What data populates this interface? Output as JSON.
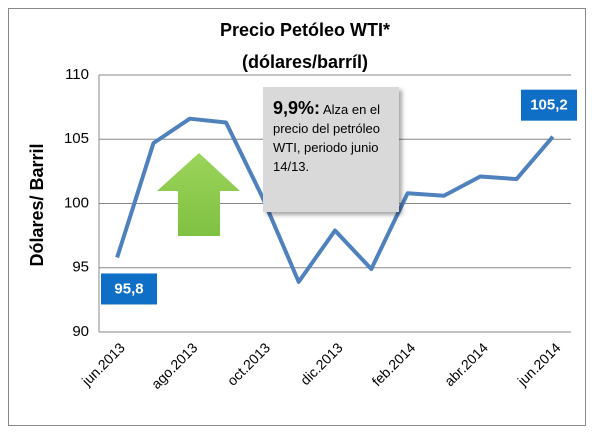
{
  "chart_data": {
    "type": "line",
    "title": "Precio Petóleo WTI*",
    "subtitle": "(dólares/barríl)",
    "y_label": "Dólares/ Barril",
    "categories": [
      "jun.2013",
      null,
      "ago.2013",
      null,
      "oct.2013",
      null,
      "dic.2013",
      null,
      "feb.2014",
      null,
      "abr.2014",
      null,
      "jun.2014"
    ],
    "series": [
      {
        "name": "WTI",
        "color": "#4f81bd",
        "values": [
          95.8,
          104.7,
          106.6,
          106.3,
          100.5,
          93.9,
          97.9,
          94.9,
          100.8,
          100.6,
          102.1,
          101.9,
          105.2
        ],
        "value_labels": [
          "95,8",
          null,
          null,
          null,
          null,
          null,
          null,
          null,
          null,
          null,
          null,
          null,
          "105,2"
        ]
      }
    ],
    "ylim": [
      90,
      110
    ],
    "yticks": [
      90,
      95,
      100,
      105,
      110
    ],
    "grid": true,
    "annotation": {
      "highlight": "9,9%:",
      "text": "Alza en el precio del petróleo WTI, periodo junio 14/13."
    }
  }
}
